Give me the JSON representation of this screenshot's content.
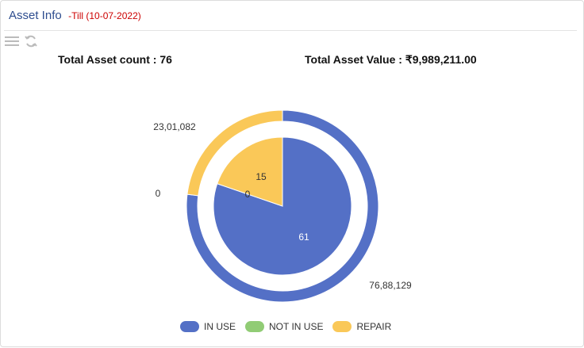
{
  "header": {
    "title": "Asset Info",
    "subtitle": "-Till (10-07-2022)"
  },
  "toolbar": {
    "menu_icon": "hamburger-menu-icon",
    "refresh_icon": "refresh-icon"
  },
  "stats": {
    "count_text": "Total Asset count : 76",
    "value_text": "Total Asset Value : ₹9,989,211.00"
  },
  "colors": {
    "in_use": "#5470c6",
    "not_in_use": "#91cc75",
    "repair": "#fac858",
    "header_title": "#2e4d8f",
    "header_subtitle": "#cc0000"
  },
  "legend": {
    "items": [
      "IN USE",
      "NOT IN USE",
      "REPAIR"
    ]
  },
  "chart_data": [
    {
      "type": "pie",
      "role": "inner",
      "categories": [
        "IN USE",
        "NOT IN USE",
        "REPAIR"
      ],
      "values": [
        61,
        0,
        15
      ],
      "labels": [
        "61",
        "0",
        "15"
      ]
    },
    {
      "type": "pie",
      "role": "outer-ring",
      "categories": [
        "IN USE",
        "NOT IN USE",
        "REPAIR"
      ],
      "values": [
        7688129,
        0,
        2301082
      ],
      "labels": [
        "76,88,129",
        "0",
        "23,01,082"
      ]
    }
  ]
}
